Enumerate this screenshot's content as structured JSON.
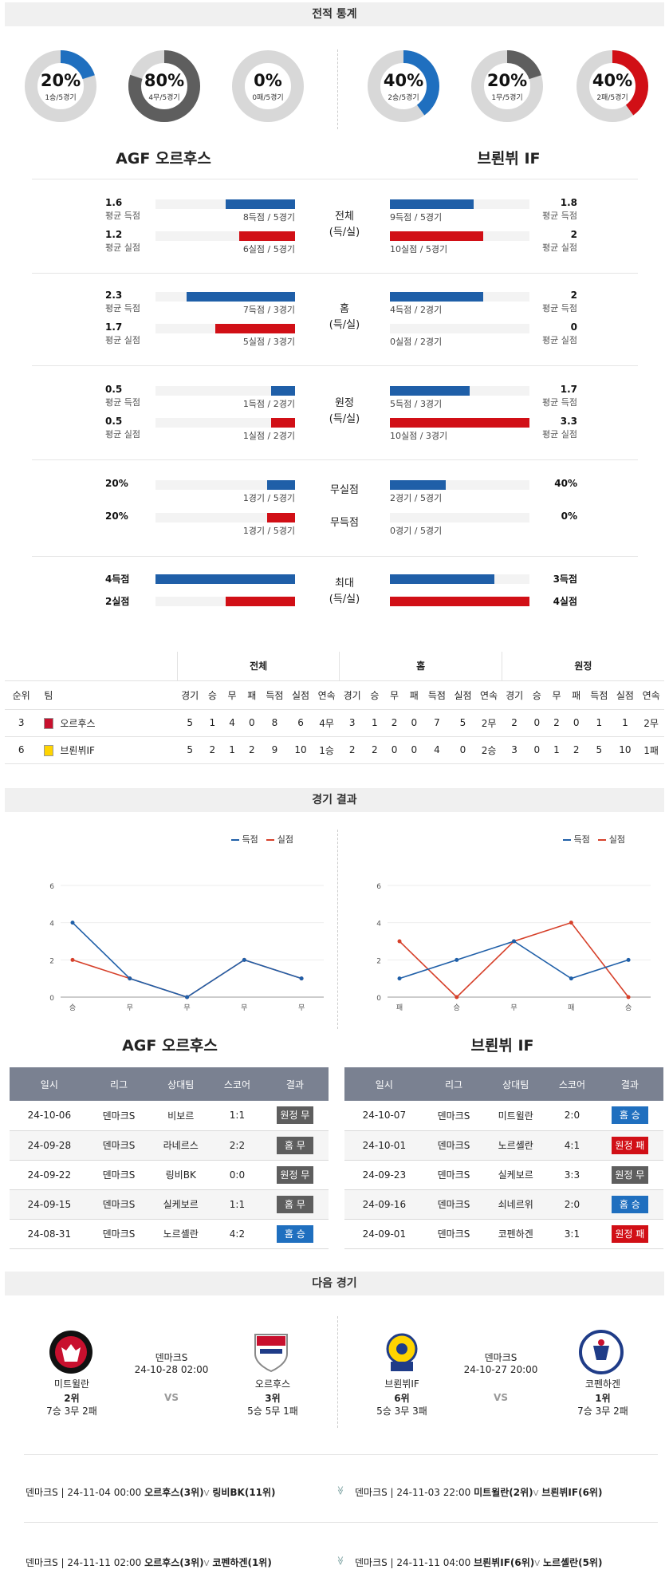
{
  "sections": {
    "stats": "전적 통계",
    "results": "경기 결과",
    "next": "다음 경기"
  },
  "donuts": [
    {
      "pct": "20%",
      "sub": "1승/5경기",
      "value": 0.2,
      "color": "#1f6fbf"
    },
    {
      "pct": "80%",
      "sub": "4무/5경기",
      "value": 0.8,
      "color": "#5e5e5e"
    },
    {
      "pct": "0%",
      "sub": "0패/5경기",
      "value": 0,
      "color": "#d10f16"
    },
    {
      "pct": "40%",
      "sub": "2승/5경기",
      "value": 0.4,
      "color": "#1f6fbf"
    },
    {
      "pct": "20%",
      "sub": "1무/5경기",
      "value": 0.2,
      "color": "#5e5e5e"
    },
    {
      "pct": "40%",
      "sub": "2패/5경기",
      "value": 0.4,
      "color": "#d10f16"
    }
  ],
  "teams": {
    "home": "AGF 오르후스",
    "away": "브뢴뷔 IF"
  },
  "stat_groups": [
    {
      "label1": "전체",
      "label2": "(득/실)",
      "rows": [
        {
          "ln": "1.6",
          "ll": "평균 득점",
          "lc": "8득점 / 5경기",
          "lv": 0.5,
          "rn": "1.8",
          "rl": "평균 득점",
          "rc": "9득점 / 5경기",
          "rv": 0.6,
          "color": "blue"
        },
        {
          "ln": "1.2",
          "ll": "평균 실점",
          "lc": "6실점 / 5경기",
          "lv": 0.4,
          "rn": "2",
          "rl": "평균 실점",
          "rc": "10실점 / 5경기",
          "rv": 0.67,
          "color": "red"
        }
      ]
    },
    {
      "label1": "홈",
      "label2": "(득/실)",
      "rows": [
        {
          "ln": "2.3",
          "ll": "평균 득점",
          "lc": "7득점 / 3경기",
          "lv": 0.78,
          "rn": "2",
          "rl": "평균 득점",
          "rc": "4득점 / 2경기",
          "rv": 0.67,
          "color": "blue"
        },
        {
          "ln": "1.7",
          "ll": "평균 실점",
          "lc": "5실점 / 3경기",
          "lv": 0.57,
          "rn": "0",
          "rl": "평균 실점",
          "rc": "0실점 / 2경기",
          "rv": 0,
          "color": "red"
        }
      ]
    },
    {
      "label1": "원정",
      "label2": "(득/실)",
      "rows": [
        {
          "ln": "0.5",
          "ll": "평균 득점",
          "lc": "1득점 / 2경기",
          "lv": 0.17,
          "rn": "1.7",
          "rl": "평균 득점",
          "rc": "5득점 / 3경기",
          "rv": 0.57,
          "color": "blue"
        },
        {
          "ln": "0.5",
          "ll": "평균 실점",
          "lc": "1실점 / 2경기",
          "lv": 0.17,
          "rn": "3.3",
          "rl": "평균 실점",
          "rc": "10실점 / 3경기",
          "rv": 1.0,
          "color": "red"
        }
      ]
    }
  ],
  "zero_group": [
    {
      "ln": "20%",
      "lc": "1경기 / 5경기",
      "lv": 0.2,
      "mid": "무실점",
      "rn": "40%",
      "rc": "2경기 / 5경기",
      "rv": 0.4,
      "color": "blue"
    },
    {
      "ln": "20%",
      "lc": "1경기 / 5경기",
      "lv": 0.2,
      "mid": "무득점",
      "rn": "0%",
      "rc": "0경기 / 5경기",
      "rv": 0,
      "color": "red"
    }
  ],
  "max_group": {
    "label1": "최대",
    "label2": "(득/실)",
    "rows": [
      {
        "ln": "4득점",
        "lv": 1.0,
        "rn": "3득점",
        "rv": 0.75,
        "color": "blue"
      },
      {
        "ln": "2실점",
        "lv": 0.5,
        "rn": "4실점",
        "rv": 1.0,
        "color": "red"
      }
    ]
  },
  "standings": {
    "groups": [
      "전체",
      "홈",
      "원정"
    ],
    "head": [
      "순위",
      "팀",
      "경기",
      "승",
      "무",
      "패",
      "득점",
      "실점",
      "연속",
      "경기",
      "승",
      "무",
      "패",
      "득점",
      "실점",
      "연속",
      "경기",
      "승",
      "무",
      "패",
      "득점",
      "실점",
      "연속"
    ],
    "rows": [
      [
        "3",
        "오르후스",
        "5",
        "1",
        "4",
        "0",
        "8",
        "6",
        "4무",
        "3",
        "1",
        "2",
        "0",
        "7",
        "5",
        "2무",
        "2",
        "0",
        "2",
        "0",
        "1",
        "1",
        "2무"
      ],
      [
        "6",
        "브뢴뷔IF",
        "5",
        "2",
        "1",
        "2",
        "9",
        "10",
        "1승",
        "2",
        "2",
        "0",
        "0",
        "4",
        "0",
        "2승",
        "3",
        "0",
        "1",
        "2",
        "5",
        "10",
        "1패"
      ]
    ]
  },
  "legend": {
    "scored": "득점",
    "conceded": "실점"
  },
  "chart_data": [
    {
      "type": "line",
      "categories": [
        "승",
        "무",
        "무",
        "무",
        "무"
      ],
      "ylim": [
        0,
        6
      ],
      "yticks": [
        0,
        2,
        4,
        6
      ],
      "series": [
        {
          "name": "득점",
          "values": [
            4,
            1,
            0,
            2,
            1
          ]
        },
        {
          "name": "실점",
          "values": [
            2,
            1,
            0,
            2,
            1
          ]
        }
      ]
    },
    {
      "type": "line",
      "categories": [
        "패",
        "승",
        "무",
        "패",
        "승"
      ],
      "ylim": [
        0,
        6
      ],
      "yticks": [
        0,
        2,
        4,
        6
      ],
      "series": [
        {
          "name": "득점",
          "values": [
            1,
            2,
            3,
            1,
            2
          ]
        },
        {
          "name": "실점",
          "values": [
            3,
            0,
            3,
            4,
            0
          ]
        }
      ]
    }
  ],
  "results_head": [
    "일시",
    "리그",
    "상대팀",
    "스코어",
    "결과"
  ],
  "results_home": [
    [
      "24-10-06",
      "덴마크S",
      "비보르",
      "1:1",
      "원정 무",
      "gray"
    ],
    [
      "24-09-28",
      "덴마크S",
      "라네르스",
      "2:2",
      "홈 무",
      "gray"
    ],
    [
      "24-09-22",
      "덴마크S",
      "링비BK",
      "0:0",
      "원정 무",
      "gray"
    ],
    [
      "24-09-15",
      "덴마크S",
      "실케보르",
      "1:1",
      "홈 무",
      "gray"
    ],
    [
      "24-08-31",
      "덴마크S",
      "노르셸란",
      "4:2",
      "홈 승",
      "blue"
    ]
  ],
  "results_away": [
    [
      "24-10-07",
      "덴마크S",
      "미트윌란",
      "2:0",
      "홈 승",
      "blue"
    ],
    [
      "24-10-01",
      "덴마크S",
      "노르셸란",
      "4:1",
      "원정 패",
      "red"
    ],
    [
      "24-09-23",
      "덴마크S",
      "실케보르",
      "3:3",
      "원정 무",
      "gray"
    ],
    [
      "24-09-16",
      "덴마크S",
      "쇠네르위",
      "2:0",
      "홈 승",
      "blue"
    ],
    [
      "24-09-01",
      "덴마크S",
      "코펜하겐",
      "3:1",
      "원정 패",
      "red"
    ]
  ],
  "next_matches": [
    {
      "league": "덴마크S",
      "time": "24-10-28 02:00",
      "vs": "VS",
      "t1": {
        "name": "미트윌란",
        "rank": "2위",
        "rec": "7승 3무 2패"
      },
      "t2": {
        "name": "오르후스",
        "rank": "3위",
        "rec": "5승 5무 1패"
      }
    },
    {
      "league": "덴마크S",
      "time": "24-10-27 20:00",
      "vs": "VS",
      "t1": {
        "name": "브뢴뷔IF",
        "rank": "6위",
        "rec": "5승 3무 3패"
      },
      "t2": {
        "name": "코펜하겐",
        "rank": "1위",
        "rec": "7승 3무 2패"
      }
    }
  ],
  "schedule": [
    {
      "left": {
        "info": "덴마크S | 24-11-04 00:00",
        "home": "오르후스(3위)",
        "mark": "V",
        "away": "링비BK(11위)"
      },
      "right": {
        "info": "덴마크S | 24-11-03 22:00",
        "home": "미트윌란(2위)",
        "mark": "V",
        "away": "브뢴뷔IF(6위)"
      }
    },
    {
      "left": {
        "info": "덴마크S | 24-11-11 02:00",
        "home": "오르후스(3위)",
        "mark": "V",
        "away": "코펜하겐(1위)"
      },
      "right": {
        "info": "덴마크S | 24-11-11 04:00",
        "home": "브뢴뷔IF(6위)",
        "mark": "V",
        "away": "노르셸란(5위)"
      }
    }
  ]
}
